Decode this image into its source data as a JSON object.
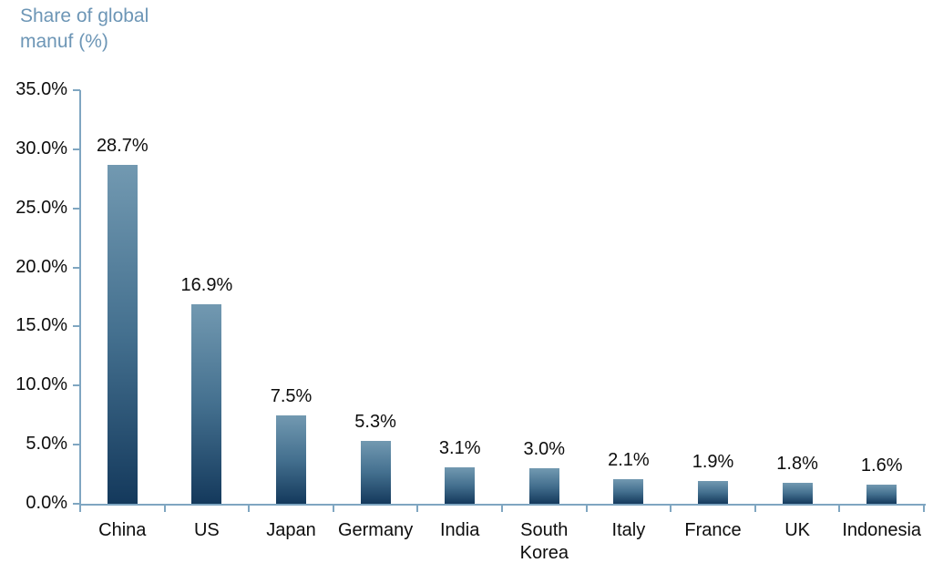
{
  "title": {
    "line1": "Share of global",
    "line2": "manuf (%)"
  },
  "colors": {
    "title_text": "#6D96B6",
    "axis_line": "#7FA6C1",
    "bar_gradient_top": "#7299B1",
    "bar_gradient_bottom": "#14395C",
    "label_text": "#0d0d0d"
  },
  "chart_data": {
    "type": "bar",
    "title": "Share of global manuf (%)",
    "categories": [
      "China",
      "US",
      "Japan",
      "Germany",
      "India",
      "South Korea",
      "Italy",
      "France",
      "UK",
      "Indonesia"
    ],
    "values": [
      28.7,
      16.9,
      7.5,
      5.3,
      3.1,
      3.0,
      2.1,
      1.9,
      1.8,
      1.6
    ],
    "data_labels": [
      "28.7%",
      "16.9%",
      "7.5%",
      "5.3%",
      "3.1%",
      "3.0%",
      "2.1%",
      "1.9%",
      "1.8%",
      "1.6%"
    ],
    "xlabel": "",
    "ylabel": "Share of global manuf (%)",
    "ylim": [
      0,
      35
    ],
    "ytick_step": 5,
    "yticks": [
      {
        "value": 0,
        "label": "0.0%"
      },
      {
        "value": 5,
        "label": "5.0%"
      },
      {
        "value": 10,
        "label": "10.0%"
      },
      {
        "value": 15,
        "label": "15.0%"
      },
      {
        "value": 20,
        "label": "20.0%"
      },
      {
        "value": 25,
        "label": "25.0%"
      },
      {
        "value": 30,
        "label": "30.0%"
      },
      {
        "value": 35,
        "label": "35.0%"
      }
    ],
    "grid": false,
    "legend_position": "none"
  }
}
